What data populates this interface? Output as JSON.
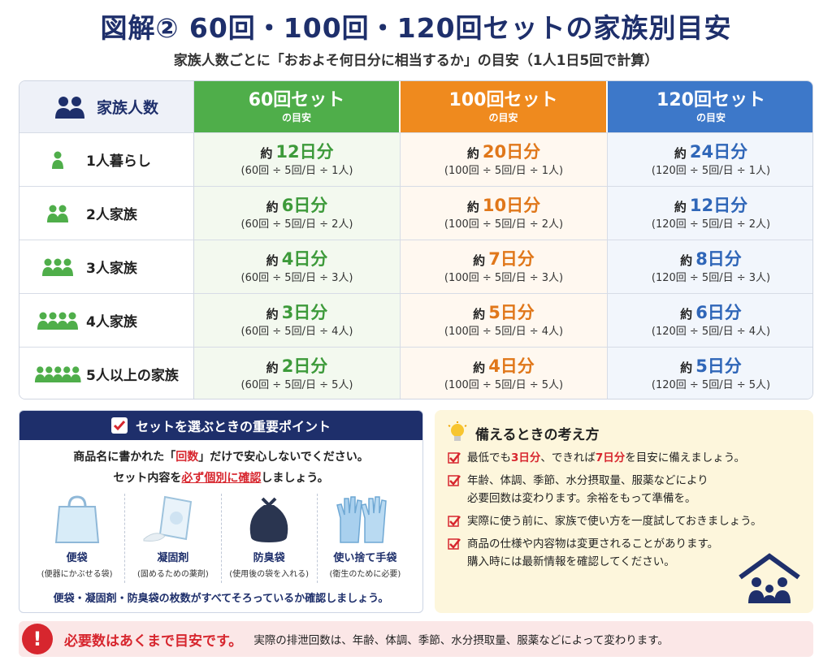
{
  "title": "図解② 60回・100回・120回セットの家族別目安",
  "subtitle": "家族人数ごとに「おおよそ何日分に相当するか」の目安（1人1日5回で計算）",
  "table": {
    "header_family": "家族人数",
    "headers": [
      {
        "big": "60回セット",
        "small": "の目安"
      },
      {
        "big": "100回セット",
        "small": "の目安"
      },
      {
        "big": "120回セット",
        "small": "の目安"
      }
    ],
    "prefix": "約",
    "rows": [
      {
        "label": "1人暮らし",
        "people": 1,
        "c60": {
          "val": "12日分",
          "calc": "(60回 ÷ 5回/日 ÷ 1人)"
        },
        "c100": {
          "val": "20日分",
          "calc": "(100回 ÷ 5回/日 ÷ 1人)"
        },
        "c120": {
          "val": "24日分",
          "calc": "(120回 ÷ 5回/日 ÷ 1人)"
        }
      },
      {
        "label": "2人家族",
        "people": 2,
        "c60": {
          "val": "6日分",
          "calc": "(60回 ÷ 5回/日 ÷ 2人)"
        },
        "c100": {
          "val": "10日分",
          "calc": "(100回 ÷ 5回/日 ÷ 2人)"
        },
        "c120": {
          "val": "12日分",
          "calc": "(120回 ÷ 5回/日 ÷ 2人)"
        }
      },
      {
        "label": "3人家族",
        "people": 3,
        "c60": {
          "val": "4日分",
          "calc": "(60回 ÷ 5回/日 ÷ 3人)"
        },
        "c100": {
          "val": "7日分",
          "calc": "(100回 ÷ 5回/日 ÷ 3人)"
        },
        "c120": {
          "val": "8日分",
          "calc": "(120回 ÷ 5回/日 ÷ 3人)"
        }
      },
      {
        "label": "4人家族",
        "people": 4,
        "c60": {
          "val": "3日分",
          "calc": "(60回 ÷ 5回/日 ÷ 4人)"
        },
        "c100": {
          "val": "5日分",
          "calc": "(100回 ÷ 5回/日 ÷ 4人)"
        },
        "c120": {
          "val": "6日分",
          "calc": "(120回 ÷ 5回/日 ÷ 4人)"
        }
      },
      {
        "label": "5人以上の家族",
        "people": 5,
        "c60": {
          "val": "2日分",
          "calc": "(60回 ÷ 5回/日 ÷ 5人)"
        },
        "c100": {
          "val": "4日分",
          "calc": "(100回 ÷ 5回/日 ÷ 5人)"
        },
        "c120": {
          "val": "5日分",
          "calc": "(120回 ÷ 5回/日 ÷ 5人)"
        }
      }
    ]
  },
  "points": {
    "heading": "セットを選ぶときの重要ポイント",
    "line1_a": "商品名に書かれた「",
    "line1_b": "回数",
    "line1_c": "」だけで安心しないでください。",
    "line2_a": "セット内容を",
    "line2_b": "必ず個別に確認",
    "line2_c": "しましょう。",
    "items": [
      {
        "name": "便袋",
        "desc": "(便器にかぶせる袋)",
        "icon": "bag-icon"
      },
      {
        "name": "凝固剤",
        "desc": "(固めるための薬剤)",
        "icon": "coagulant-icon"
      },
      {
        "name": "防臭袋",
        "desc": "(使用後の袋を入れる)",
        "icon": "deodorant-bag-icon"
      },
      {
        "name": "使い捨て手袋",
        "desc": "(衛生のために必要)",
        "icon": "gloves-icon"
      }
    ],
    "footer": "便袋・凝固剤・防臭袋の枚数がすべてそろっているか確認しましょう。"
  },
  "thinking": {
    "heading": "備えるときの考え方",
    "tip1_a": "最低でも",
    "tip1_b": "3日分",
    "tip1_c": "、できれば",
    "tip1_d": "7日分",
    "tip1_e": "を目安に備えましょう。",
    "tip2": "年齢、体調、季節、水分摂取量、服薬などにより",
    "tip2b": "必要回数は変わります。余裕をもって準備を。",
    "tip3": "実際に使う前に、家族で使い方を一度試しておきましょう。",
    "tip4": "商品の仕様や内容物は変更されることがあります。",
    "tip4b": "購入時には最新情報を確認してください。"
  },
  "warning": {
    "icon": "!",
    "main": "必要数はあくまで目安です。",
    "sub": "実際の排泄回数は、年齢、体調、季節、水分摂取量、服薬などによって変わります。"
  },
  "colors": {
    "navy": "#1e2f6b",
    "green": "#4fae4a",
    "orange": "#ef8a1e",
    "blue": "#3d78c9",
    "red": "#d7262e"
  }
}
